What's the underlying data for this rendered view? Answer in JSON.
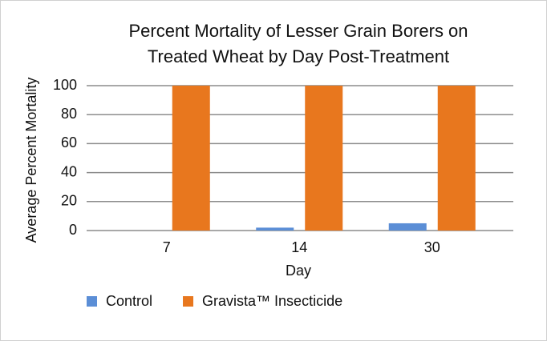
{
  "chart_data": {
    "type": "bar",
    "title": [
      "Percent Mortality of Lesser Grain Borers on",
      "Treated Wheat by Day Post-Treatment"
    ],
    "x_label": "Day",
    "y_label": "Average Percent Mortality",
    "categories": [
      "7",
      "14",
      "30"
    ],
    "series": [
      {
        "name": "Control",
        "color": "#5b8ed6",
        "values": [
          0,
          2,
          5
        ]
      },
      {
        "name": "Gravista™ Insecticide",
        "color": "#e8771e",
        "values": [
          100,
          100,
          100
        ]
      }
    ],
    "ylim": [
      0,
      100
    ],
    "yticks": [
      0,
      20,
      40,
      60,
      80,
      100
    ],
    "grid": true,
    "legend": "bottom"
  }
}
